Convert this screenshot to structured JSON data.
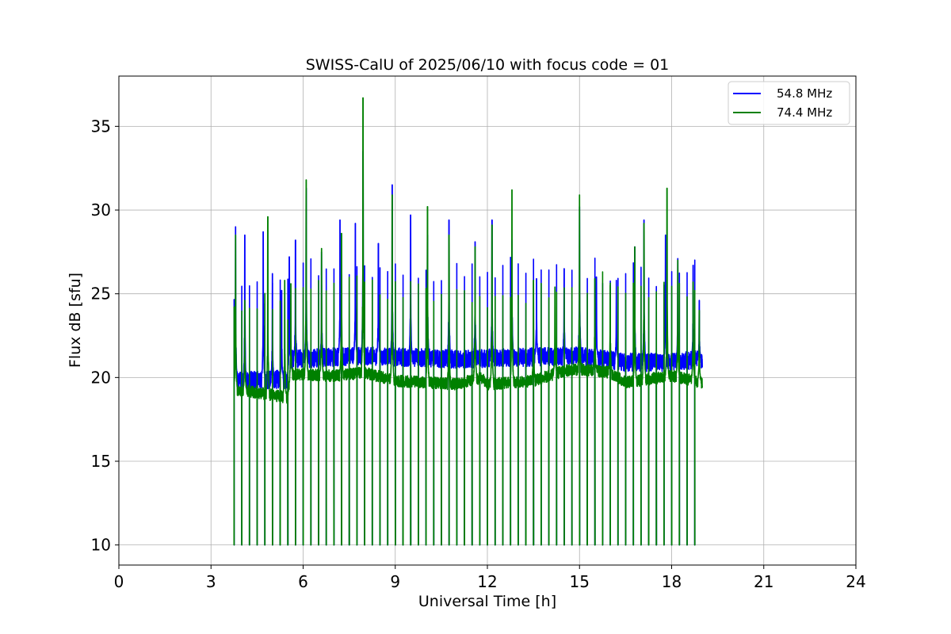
{
  "chart_data": {
    "type": "line",
    "title": "SWISS-CalU of 2025/06/10 with focus code = 01",
    "xlabel": "Universal Time [h]",
    "ylabel": "Flux dB [sfu]",
    "xlim": [
      0,
      24
    ],
    "ylim": [
      8.8,
      38
    ],
    "xticks": [
      0,
      3,
      6,
      9,
      12,
      15,
      18,
      21,
      24
    ],
    "xtick_labels": [
      "0",
      "3",
      "6",
      "9",
      "12",
      "15",
      "18",
      "21",
      "24"
    ],
    "yticks": [
      10,
      15,
      20,
      25,
      30,
      35
    ],
    "ytick_labels": [
      "10",
      "15",
      "20",
      "25",
      "30",
      "35"
    ],
    "grid": true,
    "legend_position": "top-right",
    "data_range_x": [
      3.75,
      19.0
    ],
    "calibration_floor": 10,
    "calibration_interval_h": 0.25,
    "series": [
      {
        "name": "54.8 MHz",
        "color": "#0000ff",
        "baseline": [
          [
            3.75,
            19.8
          ],
          [
            5.5,
            19.9
          ],
          [
            5.6,
            21.1
          ],
          [
            8.0,
            21.3
          ],
          [
            11.0,
            21.1
          ],
          [
            13.0,
            21.2
          ],
          [
            15.0,
            21.3
          ],
          [
            16.5,
            20.9
          ],
          [
            18.0,
            20.9
          ],
          [
            19.0,
            21.1
          ]
        ],
        "peaks": [
          [
            3.8,
            29.0
          ],
          [
            4.1,
            28.5
          ],
          [
            4.7,
            28.7
          ],
          [
            5.0,
            26.2
          ],
          [
            5.3,
            25.2
          ],
          [
            5.55,
            27.2
          ],
          [
            5.75,
            28.2
          ],
          [
            6.1,
            31.3
          ],
          [
            6.6,
            27.5
          ],
          [
            7.2,
            29.4
          ],
          [
            7.7,
            29.2
          ],
          [
            7.95,
            33.5
          ],
          [
            8.45,
            28.0
          ],
          [
            8.9,
            31.5
          ],
          [
            9.5,
            29.7
          ],
          [
            10.05,
            28.5
          ],
          [
            10.75,
            29.4
          ],
          [
            11.6,
            28.1
          ],
          [
            12.15,
            29.4
          ],
          [
            12.8,
            28.2
          ],
          [
            13.6,
            25.9
          ],
          [
            14.5,
            26.5
          ],
          [
            15.0,
            30.2
          ],
          [
            15.55,
            26.0
          ],
          [
            16.2,
            25.8
          ],
          [
            16.8,
            27.8
          ],
          [
            17.1,
            29.4
          ],
          [
            17.8,
            28.5
          ],
          [
            18.2,
            27.1
          ],
          [
            18.7,
            26.7
          ],
          [
            18.9,
            24.6
          ]
        ]
      },
      {
        "name": "74.4 MHz",
        "color": "#008000",
        "baseline": [
          [
            3.75,
            19.3
          ],
          [
            4.5,
            19.1
          ],
          [
            5.5,
            18.8
          ],
          [
            5.6,
            20.2
          ],
          [
            7.0,
            20.1
          ],
          [
            8.0,
            20.3
          ],
          [
            9.0,
            19.8
          ],
          [
            11.0,
            19.6
          ],
          [
            11.8,
            20.0
          ],
          [
            12.0,
            19.6
          ],
          [
            13.5,
            19.8
          ],
          [
            14.5,
            20.4
          ],
          [
            15.0,
            20.5
          ],
          [
            16.0,
            20.3
          ],
          [
            16.5,
            19.7
          ],
          [
            18.0,
            20.1
          ],
          [
            19.0,
            19.7
          ]
        ],
        "peaks": [
          [
            3.8,
            28.5
          ],
          [
            4.1,
            24.6
          ],
          [
            4.85,
            29.6
          ],
          [
            5.4,
            25.8
          ],
          [
            5.6,
            25.6
          ],
          [
            6.1,
            31.8
          ],
          [
            6.6,
            27.7
          ],
          [
            7.25,
            28.6
          ],
          [
            7.95,
            36.7
          ],
          [
            8.9,
            30.9
          ],
          [
            10.05,
            30.2
          ],
          [
            10.75,
            28.5
          ],
          [
            11.6,
            27.8
          ],
          [
            12.15,
            29.1
          ],
          [
            12.8,
            31.2
          ],
          [
            13.5,
            25.8
          ],
          [
            14.2,
            25.4
          ],
          [
            15.0,
            30.9
          ],
          [
            15.5,
            25.9
          ],
          [
            16.0,
            25.5
          ],
          [
            16.8,
            27.8
          ],
          [
            17.1,
            29.2
          ],
          [
            17.85,
            31.3
          ],
          [
            18.2,
            27.0
          ],
          [
            18.7,
            25.7
          ],
          [
            18.9,
            24.0
          ]
        ]
      }
    ]
  }
}
